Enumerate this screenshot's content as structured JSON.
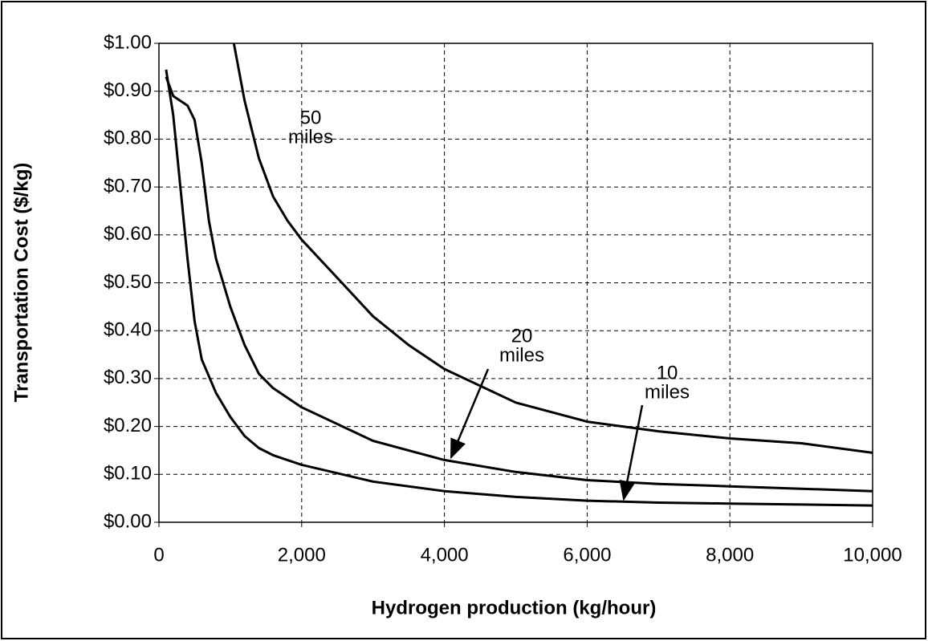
{
  "chart_data": {
    "type": "line",
    "x_label": "Hydrogen production (kg/hour)",
    "y_label": "Transportation Cost ($/kg)",
    "xlim": [
      0,
      10000
    ],
    "xticks": [
      0,
      {
        "value": 2000,
        "label": "2,000"
      },
      {
        "value": 4000,
        "label": "4,000"
      },
      {
        "value": 6000,
        "label": "6,000"
      },
      {
        "value": 8000,
        "label": "8,000"
      },
      {
        "value": 10000,
        "label": "10,000"
      }
    ],
    "ylim": [
      0,
      1
    ],
    "yticks": [
      {
        "value": 0,
        "label": "$0.00"
      },
      {
        "value": 0.1,
        "label": "$0.10"
      },
      {
        "value": 0.2,
        "label": "$0.20"
      },
      {
        "value": 0.3,
        "label": "$0.30"
      },
      {
        "value": 0.4,
        "label": "$0.40"
      },
      {
        "value": 0.5,
        "label": "$0.50"
      },
      {
        "value": 0.6,
        "label": "$0.60"
      },
      {
        "value": 0.7,
        "label": "$0.70"
      },
      {
        "value": 0.8,
        "label": "$0.80"
      },
      {
        "value": 0.9,
        "label": "$0.90"
      },
      {
        "value": 1,
        "label": "$1.00"
      }
    ],
    "grid": true,
    "series": [
      {
        "color": "#000000",
        "x": [
          100,
          200,
          300,
          400,
          500,
          600,
          800,
          1000,
          1200,
          1400,
          1600,
          2000,
          3000,
          4000,
          5000,
          6000,
          7000,
          8000,
          9000,
          10000
        ],
        "values": [
          0.945,
          0.85,
          0.7,
          0.55,
          0.42,
          0.34,
          0.27,
          0.22,
          0.18,
          0.155,
          0.14,
          0.12,
          0.085,
          0.065,
          0.053,
          0.045,
          0.041,
          0.039,
          0.037,
          0.035
        ]
      },
      {
        "color": "#000000",
        "x": [
          100,
          200,
          400,
          500,
          600,
          700,
          800,
          1000,
          1200,
          1400,
          1600,
          2000,
          3000,
          4000,
          5000,
          6000,
          7000,
          8000,
          9000,
          10000
        ],
        "values": [
          0.93,
          0.89,
          0.87,
          0.84,
          0.75,
          0.63,
          0.55,
          0.45,
          0.37,
          0.31,
          0.28,
          0.24,
          0.17,
          0.13,
          0.105,
          0.088,
          0.08,
          0.075,
          0.07,
          0.065
        ]
      },
      {
        "color": "#000000",
        "x": [
          1050,
          1200,
          1400,
          1600,
          1800,
          2000,
          2500,
          3000,
          3500,
          4000,
          5000,
          6000,
          7000,
          8000,
          9000,
          10000
        ],
        "values": [
          1.0,
          0.88,
          0.76,
          0.68,
          0.63,
          0.59,
          0.51,
          0.43,
          0.37,
          0.32,
          0.25,
          0.21,
          0.19,
          0.175,
          0.165,
          0.145
        ]
      }
    ],
    "annotations": [
      {
        "lines": [
          "50",
          "miles"
        ]
      },
      {
        "lines": [
          "20",
          "miles"
        ]
      },
      {
        "lines": [
          "10",
          "miles"
        ]
      }
    ]
  }
}
